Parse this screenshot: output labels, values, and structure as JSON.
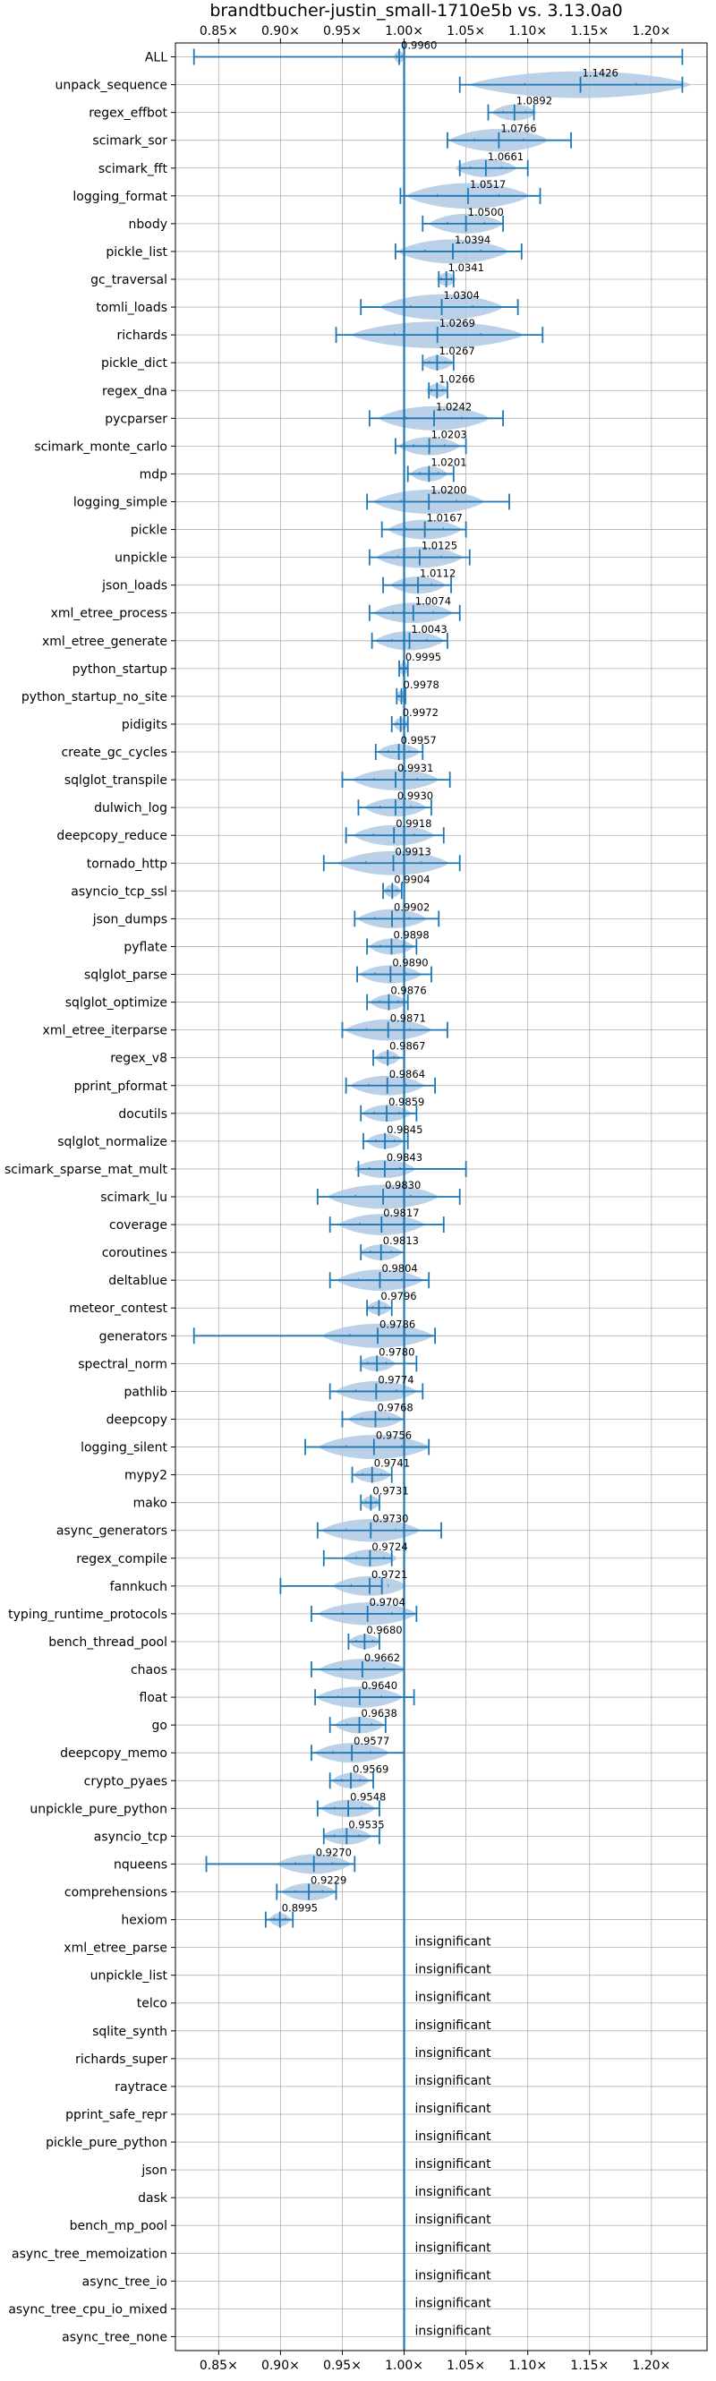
{
  "chart_data": {
    "type": "violin",
    "title": "brandtbucher-justin_small-1710e5b vs. 3.13.0a0",
    "xlim": [
      0.815,
      1.245
    ],
    "x_ticks": [
      0.85,
      0.9,
      0.95,
      1.0,
      1.05,
      1.1,
      1.15,
      1.2
    ],
    "x_tick_labels": [
      "0.85×",
      "0.90×",
      "0.95×",
      "1.00×",
      "1.05×",
      "1.10×",
      "1.15×",
      "1.20×"
    ],
    "reference_line": 1.0,
    "grid": true,
    "colors": {
      "violin": "#aec9e4",
      "line": "#1f77b4",
      "grid": "#b0b0b0"
    },
    "insignificant_text": "insignificant",
    "benchmarks": [
      {
        "name": "ALL",
        "label": "0.9960",
        "mean": 0.996,
        "min": 0.83,
        "max": 1.225,
        "spread": 0.004
      },
      {
        "name": "unpack_sequence",
        "label": "1.1426",
        "mean": 1.1426,
        "min": 1.045,
        "max": 1.225,
        "spread": 0.09
      },
      {
        "name": "regex_effbot",
        "label": "1.0892",
        "mean": 1.0892,
        "min": 1.068,
        "max": 1.105,
        "spread": 0.018
      },
      {
        "name": "scimark_sor",
        "label": "1.0766",
        "mean": 1.0766,
        "min": 1.035,
        "max": 1.135,
        "spread": 0.04
      },
      {
        "name": "scimark_fft",
        "label": "1.0661",
        "mean": 1.0661,
        "min": 1.045,
        "max": 1.1,
        "spread": 0.025
      },
      {
        "name": "logging_format",
        "label": "1.0517",
        "mean": 1.0517,
        "min": 0.997,
        "max": 1.11,
        "spread": 0.05
      },
      {
        "name": "nbody",
        "label": "1.0500",
        "mean": 1.05,
        "min": 1.015,
        "max": 1.08,
        "spread": 0.03
      },
      {
        "name": "pickle_list",
        "label": "1.0394",
        "mean": 1.0394,
        "min": 0.993,
        "max": 1.095,
        "spread": 0.045
      },
      {
        "name": "gc_traversal",
        "label": "1.0341",
        "mean": 1.0341,
        "min": 1.028,
        "max": 1.04,
        "spread": 0.008
      },
      {
        "name": "tomli_loads",
        "label": "1.0304",
        "mean": 1.0304,
        "min": 0.965,
        "max": 1.092,
        "spread": 0.05
      },
      {
        "name": "richards",
        "label": "1.0269",
        "mean": 1.0269,
        "min": 0.945,
        "max": 1.112,
        "spread": 0.07
      },
      {
        "name": "pickle_dict",
        "label": "1.0267",
        "mean": 1.0267,
        "min": 1.015,
        "max": 1.04,
        "spread": 0.013
      },
      {
        "name": "regex_dna",
        "label": "1.0266",
        "mean": 1.0266,
        "min": 1.02,
        "max": 1.035,
        "spread": 0.009
      },
      {
        "name": "pycparser",
        "label": "1.0242",
        "mean": 1.0242,
        "min": 0.972,
        "max": 1.08,
        "spread": 0.045
      },
      {
        "name": "scimark_monte_carlo",
        "label": "1.0203",
        "mean": 1.0203,
        "min": 0.993,
        "max": 1.05,
        "spread": 0.025
      },
      {
        "name": "mdp",
        "label": "1.0201",
        "mean": 1.0201,
        "min": 1.003,
        "max": 1.04,
        "spread": 0.015
      },
      {
        "name": "logging_simple",
        "label": "1.0200",
        "mean": 1.02,
        "min": 0.97,
        "max": 1.085,
        "spread": 0.045
      },
      {
        "name": "pickle",
        "label": "1.0167",
        "mean": 1.0167,
        "min": 0.982,
        "max": 1.05,
        "spread": 0.03
      },
      {
        "name": "unpickle",
        "label": "1.0125",
        "mean": 1.0125,
        "min": 0.972,
        "max": 1.053,
        "spread": 0.035
      },
      {
        "name": "json_loads",
        "label": "1.0112",
        "mean": 1.0112,
        "min": 0.983,
        "max": 1.038,
        "spread": 0.022
      },
      {
        "name": "xml_etree_process",
        "label": "1.0074",
        "mean": 1.0074,
        "min": 0.972,
        "max": 1.045,
        "spread": 0.032
      },
      {
        "name": "xml_etree_generate",
        "label": "1.0043",
        "mean": 1.0043,
        "min": 0.974,
        "max": 1.035,
        "spread": 0.028
      },
      {
        "name": "python_startup",
        "label": "0.9995",
        "mean": 0.9995,
        "min": 0.996,
        "max": 1.003,
        "spread": 0.004
      },
      {
        "name": "python_startup_no_site",
        "label": "0.9978",
        "mean": 0.9978,
        "min": 0.994,
        "max": 1.001,
        "spread": 0.004
      },
      {
        "name": "pidigits",
        "label": "0.9972",
        "mean": 0.9972,
        "min": 0.99,
        "max": 1.003,
        "spread": 0.006
      },
      {
        "name": "create_gc_cycles",
        "label": "0.9957",
        "mean": 0.9957,
        "min": 0.977,
        "max": 1.015,
        "spread": 0.017
      },
      {
        "name": "sqlglot_transpile",
        "label": "0.9931",
        "mean": 0.9931,
        "min": 0.95,
        "max": 1.037,
        "spread": 0.035
      },
      {
        "name": "dulwich_log",
        "label": "0.9930",
        "mean": 0.993,
        "min": 0.963,
        "max": 1.022,
        "spread": 0.025
      },
      {
        "name": "deepcopy_reduce",
        "label": "0.9918",
        "mean": 0.9918,
        "min": 0.953,
        "max": 1.032,
        "spread": 0.033
      },
      {
        "name": "tornado_http",
        "label": "0.9913",
        "mean": 0.9913,
        "min": 0.935,
        "max": 1.045,
        "spread": 0.045
      },
      {
        "name": "asyncio_tcp_ssl",
        "label": "0.9904",
        "mean": 0.9904,
        "min": 0.983,
        "max": 0.998,
        "spread": 0.007
      },
      {
        "name": "json_dumps",
        "label": "0.9902",
        "mean": 0.9902,
        "min": 0.96,
        "max": 1.028,
        "spread": 0.028
      },
      {
        "name": "pyflate",
        "label": "0.9898",
        "mean": 0.9898,
        "min": 0.97,
        "max": 1.01,
        "spread": 0.018
      },
      {
        "name": "sqlglot_parse",
        "label": "0.9890",
        "mean": 0.989,
        "min": 0.962,
        "max": 1.022,
        "spread": 0.025
      },
      {
        "name": "sqlglot_optimize",
        "label": "0.9876",
        "mean": 0.9876,
        "min": 0.97,
        "max": 1.003,
        "spread": 0.015
      },
      {
        "name": "xml_etree_iterparse",
        "label": "0.9871",
        "mean": 0.9871,
        "min": 0.95,
        "max": 1.035,
        "spread": 0.035
      },
      {
        "name": "regex_v8",
        "label": "0.9867",
        "mean": 0.9867,
        "min": 0.975,
        "max": 1.0,
        "spread": 0.01
      },
      {
        "name": "pprint_pformat",
        "label": "0.9864",
        "mean": 0.9864,
        "min": 0.953,
        "max": 1.025,
        "spread": 0.03
      },
      {
        "name": "docutils",
        "label": "0.9859",
        "mean": 0.9859,
        "min": 0.965,
        "max": 1.01,
        "spread": 0.02
      },
      {
        "name": "sqlglot_normalize",
        "label": "0.9845",
        "mean": 0.9845,
        "min": 0.967,
        "max": 1.003,
        "spread": 0.015
      },
      {
        "name": "scimark_sparse_mat_mult",
        "label": "0.9843",
        "mean": 0.9843,
        "min": 0.963,
        "max": 1.05,
        "spread": 0.025
      },
      {
        "name": "scimark_lu",
        "label": "0.9830",
        "mean": 0.983,
        "min": 0.93,
        "max": 1.045,
        "spread": 0.045
      },
      {
        "name": "coverage",
        "label": "0.9817",
        "mean": 0.9817,
        "min": 0.94,
        "max": 1.032,
        "spread": 0.035
      },
      {
        "name": "coroutines",
        "label": "0.9813",
        "mean": 0.9813,
        "min": 0.965,
        "max": 1.0,
        "spread": 0.017
      },
      {
        "name": "deltablue",
        "label": "0.9804",
        "mean": 0.9804,
        "min": 0.94,
        "max": 1.02,
        "spread": 0.035
      },
      {
        "name": "meteor_contest",
        "label": "0.9796",
        "mean": 0.9796,
        "min": 0.97,
        "max": 0.99,
        "spread": 0.01
      },
      {
        "name": "generators",
        "label": "0.9786",
        "mean": 0.9786,
        "min": 0.83,
        "max": 1.025,
        "spread": 0.045
      },
      {
        "name": "spectral_norm",
        "label": "0.9780",
        "mean": 0.978,
        "min": 0.965,
        "max": 1.01,
        "spread": 0.015
      },
      {
        "name": "pathlib",
        "label": "0.9774",
        "mean": 0.9774,
        "min": 0.94,
        "max": 1.015,
        "spread": 0.033
      },
      {
        "name": "deepcopy",
        "label": "0.9768",
        "mean": 0.9768,
        "min": 0.95,
        "max": 1.0,
        "spread": 0.022
      },
      {
        "name": "logging_silent",
        "label": "0.9756",
        "mean": 0.9756,
        "min": 0.92,
        "max": 1.02,
        "spread": 0.045
      },
      {
        "name": "mypy2",
        "label": "0.9741",
        "mean": 0.9741,
        "min": 0.958,
        "max": 0.99,
        "spread": 0.015
      },
      {
        "name": "mako",
        "label": "0.9731",
        "mean": 0.9731,
        "min": 0.965,
        "max": 0.98,
        "spread": 0.008
      },
      {
        "name": "async_generators",
        "label": "0.9730",
        "mean": 0.973,
        "min": 0.93,
        "max": 1.03,
        "spread": 0.04
      },
      {
        "name": "regex_compile",
        "label": "0.9724",
        "mean": 0.9724,
        "min": 0.935,
        "max": 0.99,
        "spread": 0.022
      },
      {
        "name": "fannkuch",
        "label": "0.9721",
        "mean": 0.9721,
        "min": 0.9,
        "max": 0.982,
        "spread": 0.03
      },
      {
        "name": "typing_runtime_protocols",
        "label": "0.9704",
        "mean": 0.9704,
        "min": 0.925,
        "max": 1.01,
        "spread": 0.04
      },
      {
        "name": "bench_thread_pool",
        "label": "0.9680",
        "mean": 0.968,
        "min": 0.955,
        "max": 0.98,
        "spread": 0.013
      },
      {
        "name": "chaos",
        "label": "0.9662",
        "mean": 0.9662,
        "min": 0.925,
        "max": 1.0,
        "spread": 0.035
      },
      {
        "name": "float",
        "label": "0.9640",
        "mean": 0.964,
        "min": 0.928,
        "max": 1.008,
        "spread": 0.035
      },
      {
        "name": "go",
        "label": "0.9638",
        "mean": 0.9638,
        "min": 0.94,
        "max": 0.985,
        "spread": 0.02
      },
      {
        "name": "deepcopy_memo",
        "label": "0.9577",
        "mean": 0.9577,
        "min": 0.925,
        "max": 1.0,
        "spread": 0.03
      },
      {
        "name": "crypto_pyaes",
        "label": "0.9569",
        "mean": 0.9569,
        "min": 0.94,
        "max": 0.975,
        "spread": 0.015
      },
      {
        "name": "unpickle_pure_python",
        "label": "0.9548",
        "mean": 0.9548,
        "min": 0.93,
        "max": 0.98,
        "spread": 0.022
      },
      {
        "name": "asyncio_tcp",
        "label": "0.9535",
        "mean": 0.9535,
        "min": 0.935,
        "max": 0.98,
        "spread": 0.02
      },
      {
        "name": "nqueens",
        "label": "0.9270",
        "mean": 0.927,
        "min": 0.84,
        "max": 0.96,
        "spread": 0.03
      },
      {
        "name": "comprehensions",
        "label": "0.9229",
        "mean": 0.9229,
        "min": 0.897,
        "max": 0.945,
        "spread": 0.022
      },
      {
        "name": "hexiom",
        "label": "0.8995",
        "mean": 0.8995,
        "min": 0.888,
        "max": 0.91,
        "spread": 0.009
      },
      {
        "name": "xml_etree_parse",
        "insignificant": true
      },
      {
        "name": "unpickle_list",
        "insignificant": true
      },
      {
        "name": "telco",
        "insignificant": true
      },
      {
        "name": "sqlite_synth",
        "insignificant": true
      },
      {
        "name": "richards_super",
        "insignificant": true
      },
      {
        "name": "raytrace",
        "insignificant": true
      },
      {
        "name": "pprint_safe_repr",
        "insignificant": true
      },
      {
        "name": "pickle_pure_python",
        "insignificant": true
      },
      {
        "name": "json",
        "insignificant": true
      },
      {
        "name": "dask",
        "insignificant": true
      },
      {
        "name": "bench_mp_pool",
        "insignificant": true
      },
      {
        "name": "async_tree_memoization",
        "insignificant": true
      },
      {
        "name": "async_tree_io",
        "insignificant": true
      },
      {
        "name": "async_tree_cpu_io_mixed",
        "insignificant": true
      },
      {
        "name": "async_tree_none",
        "insignificant": true
      }
    ]
  }
}
